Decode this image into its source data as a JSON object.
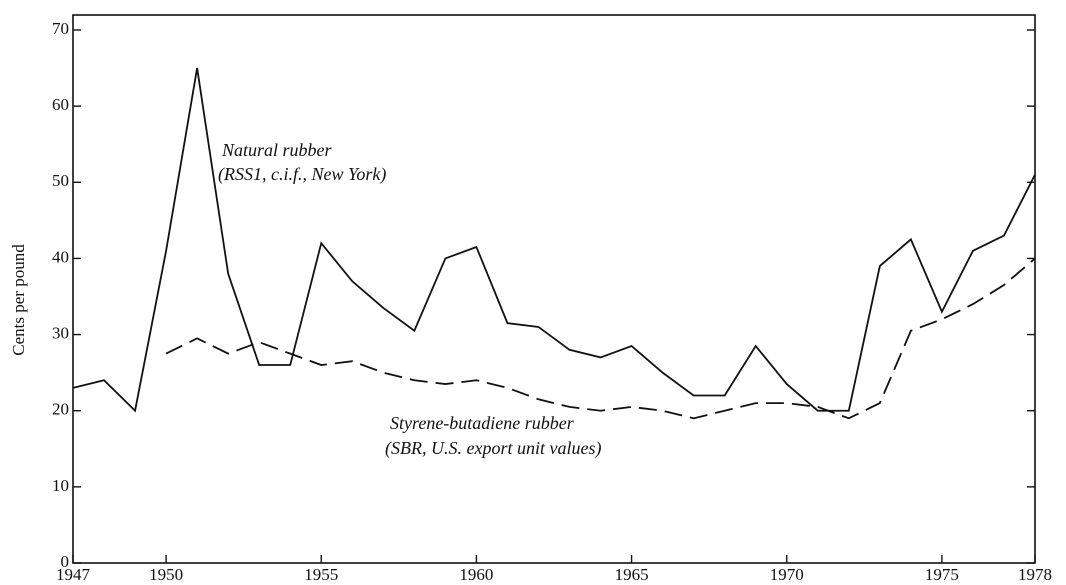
{
  "chart_data": {
    "type": "line",
    "y_label": "Cents per pound",
    "x": [
      1947,
      1948,
      1949,
      1950,
      1951,
      1952,
      1953,
      1954,
      1955,
      1956,
      1957,
      1958,
      1959,
      1960,
      1961,
      1962,
      1963,
      1964,
      1965,
      1966,
      1967,
      1968,
      1969,
      1970,
      1971,
      1972,
      1973,
      1974,
      1975,
      1976,
      1977,
      1978
    ],
    "series": [
      {
        "name": "Natural rubber",
        "color": "#111111",
        "dash": "solid",
        "values": [
          23,
          24,
          20,
          41,
          65,
          38,
          26,
          26,
          42,
          37,
          33.5,
          30.5,
          40,
          41.5,
          31.5,
          31,
          28,
          27,
          28.5,
          25,
          22,
          22,
          28.5,
          23.5,
          20,
          20,
          39,
          42.5,
          33,
          41,
          43,
          51
        ]
      },
      {
        "name": "Styrene-butadiene rubber",
        "color": "#111111",
        "dash": "dashed",
        "values": [
          null,
          null,
          null,
          27.5,
          29.5,
          27.5,
          29,
          27.5,
          26,
          26.5,
          25,
          24,
          23.5,
          24,
          23,
          21.5,
          20.5,
          20,
          20.5,
          20,
          19,
          20,
          21,
          21,
          20.5,
          19,
          21,
          30.5,
          32,
          34,
          36.5,
          40
        ]
      }
    ],
    "annotations": [
      "(RSS1, c.i.f., New York)",
      "(SBR, U.S. export unit values)"
    ],
    "xlim": [
      1947,
      1978
    ],
    "xticks": [
      1947,
      1950,
      1955,
      1960,
      1965,
      1970,
      1975,
      1978
    ],
    "ylim": [
      0,
      70
    ],
    "yticks": [
      0,
      10,
      20,
      30,
      40,
      50,
      60,
      70
    ],
    "grid": false
  }
}
